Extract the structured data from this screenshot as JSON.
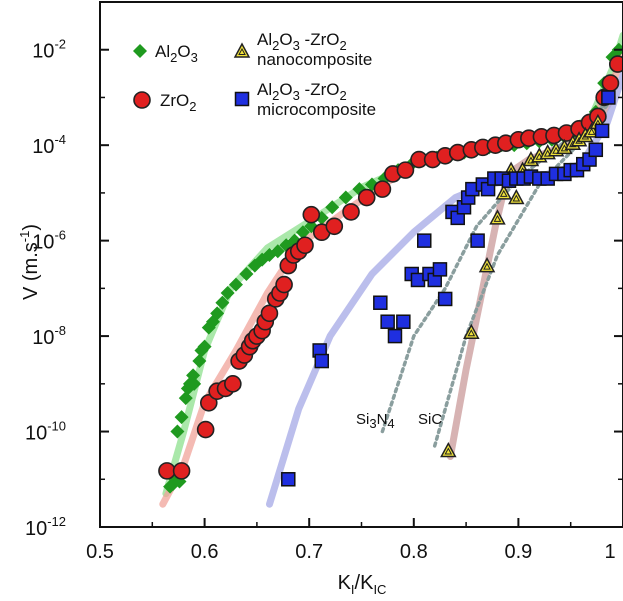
{
  "chart_data": {
    "type": "scatter",
    "title": "",
    "x_axis": {
      "label_main": "K",
      "label_sub1": "I",
      "label_mid": "/K",
      "label_sub2": "IC",
      "range": [
        0.5,
        1.0
      ],
      "ticks": [
        0.5,
        0.6,
        0.7,
        0.8,
        0.9,
        1.0
      ],
      "tick_labels": [
        "0.5",
        "0.6",
        "0.7",
        "0.8",
        "0.9",
        "1"
      ]
    },
    "y_axis": {
      "label_main": "V (m.s",
      "label_sup": "-1",
      "label_end": ")",
      "scale": "log",
      "range": [
        1e-12,
        0.1
      ],
      "ticks": [
        {
          "value": 1e-12,
          "base": "10",
          "exp": "-12"
        },
        {
          "value": 1e-10,
          "base": "10",
          "exp": "-10"
        },
        {
          "value": 1e-08,
          "base": "10",
          "exp": "-8"
        },
        {
          "value": 1e-06,
          "base": "10",
          "exp": "-6"
        },
        {
          "value": 0.0001,
          "base": "10",
          "exp": "-4"
        },
        {
          "value": 0.01,
          "base": "10",
          "exp": "-2"
        }
      ]
    },
    "grid": false,
    "legend_position": "top-left",
    "series": [
      {
        "name_parts": [
          "Al",
          "2",
          "O",
          "3"
        ],
        "label_lines": [],
        "marker": "diamond",
        "color": "#1f9a1f",
        "stroke": "#1f9a1f",
        "fit_color": "#8de08d",
        "points": [
          [
            0.567,
            7e-12
          ],
          [
            0.57,
            8e-12
          ],
          [
            0.572,
            1e-11
          ],
          [
            0.576,
            9e-12
          ],
          [
            0.574,
            1e-10
          ],
          [
            0.578,
            2e-10
          ],
          [
            0.582,
            5e-10
          ],
          [
            0.584,
            8e-10
          ],
          [
            0.586,
            1e-09
          ],
          [
            0.589,
            1.5e-09
          ],
          [
            0.59,
            1e-09
          ],
          [
            0.595,
            3e-09
          ],
          [
            0.597,
            5e-09
          ],
          [
            0.6,
            6e-09
          ],
          [
            0.604,
            1.5e-08
          ],
          [
            0.608,
            2e-08
          ],
          [
            0.612,
            3e-08
          ],
          [
            0.617,
            5e-08
          ],
          [
            0.622,
            8e-08
          ],
          [
            0.63,
            1.2e-07
          ],
          [
            0.64,
            2e-07
          ],
          [
            0.648,
            3e-07
          ],
          [
            0.655,
            4e-07
          ],
          [
            0.662,
            5e-07
          ],
          [
            0.67,
            6e-07
          ],
          [
            0.678,
            8e-07
          ],
          [
            0.686,
            1e-06
          ],
          [
            0.694,
            1.5e-06
          ],
          [
            0.702,
            2e-06
          ],
          [
            0.712,
            3e-06
          ],
          [
            0.722,
            5e-06
          ],
          [
            0.735,
            8e-06
          ],
          [
            0.748,
            1.2e-05
          ],
          [
            0.76,
            1.5e-05
          ],
          [
            0.772,
            2e-05
          ],
          [
            0.785,
            3e-05
          ],
          [
            0.798,
            4e-05
          ],
          [
            0.81,
            5e-05
          ],
          [
            0.822,
            5.5e-05
          ],
          [
            0.835,
            6e-05
          ],
          [
            0.848,
            7e-05
          ],
          [
            0.86,
            8e-05
          ],
          [
            0.872,
            9e-05
          ],
          [
            0.884,
            0.0001
          ],
          [
            0.896,
            0.0001
          ],
          [
            0.908,
            0.00011
          ],
          [
            0.92,
            0.00012
          ],
          [
            0.932,
            0.00013
          ],
          [
            0.944,
            0.00015
          ],
          [
            0.956,
            0.00018
          ],
          [
            0.966,
            0.00025
          ],
          [
            0.974,
            0.0005
          ],
          [
            0.982,
            0.002
          ],
          [
            0.99,
            0.007
          ],
          [
            0.996,
            0.01
          ]
        ]
      },
      {
        "name_parts": [
          "ZrO",
          "2"
        ],
        "label_lines": [],
        "marker": "circle",
        "color": "#e02020",
        "stroke": "#222222",
        "fit_color": "#f0a39a",
        "points": [
          [
            0.564,
            1.5e-11
          ],
          [
            0.578,
            1.5e-11
          ],
          [
            0.601,
            1.1e-10
          ],
          [
            0.604,
            4e-10
          ],
          [
            0.612,
            7e-10
          ],
          [
            0.62,
            8e-10
          ],
          [
            0.627,
            1e-09
          ],
          [
            0.633,
            3e-09
          ],
          [
            0.638,
            4e-09
          ],
          [
            0.643,
            6e-09
          ],
          [
            0.646,
            8e-09
          ],
          [
            0.65,
            1e-08
          ],
          [
            0.655,
            1.3e-08
          ],
          [
            0.658,
            2e-08
          ],
          [
            0.662,
            3e-08
          ],
          [
            0.668,
            6e-08
          ],
          [
            0.672,
            8e-08
          ],
          [
            0.676,
            1.2e-07
          ],
          [
            0.68,
            3e-07
          ],
          [
            0.685,
            5e-07
          ],
          [
            0.69,
            6e-07
          ],
          [
            0.696,
            8e-07
          ],
          [
            0.702,
            3.5e-06
          ],
          [
            0.712,
            1.5e-06
          ],
          [
            0.724,
            2e-06
          ],
          [
            0.74,
            4e-06
          ],
          [
            0.755,
            8e-06
          ],
          [
            0.77,
            1.2e-05
          ],
          [
            0.78,
            2.5e-05
          ],
          [
            0.792,
            3e-05
          ],
          [
            0.805,
            5e-05
          ],
          [
            0.818,
            5e-05
          ],
          [
            0.83,
            6e-05
          ],
          [
            0.842,
            7e-05
          ],
          [
            0.855,
            8e-05
          ],
          [
            0.866,
            9e-05
          ],
          [
            0.878,
            0.0001
          ],
          [
            0.888,
            0.00011
          ],
          [
            0.9,
            0.00013
          ],
          [
            0.91,
            0.00014
          ],
          [
            0.922,
            0.00015
          ],
          [
            0.934,
            0.00016
          ],
          [
            0.946,
            0.00018
          ],
          [
            0.958,
            0.00022
          ],
          [
            0.968,
            0.0003
          ],
          [
            0.976,
            0.0004
          ],
          [
            0.982,
            0.001
          ],
          [
            0.988,
            0.002
          ],
          [
            0.995,
            0.005
          ]
        ]
      },
      {
        "name_parts": [
          "Al",
          "2",
          "O",
          "3",
          " -ZrO",
          "2"
        ],
        "label_lines": [
          "nanocomposite"
        ],
        "marker": "triangle",
        "color": "#f1e33a",
        "stroke": "#222222",
        "fit_color": "#c99a9a",
        "points": [
          [
            0.833,
            4e-11
          ],
          [
            0.855,
            1.2e-08
          ],
          [
            0.87,
            3e-07
          ],
          [
            0.88,
            3e-06
          ],
          [
            0.886,
            1e-05
          ],
          [
            0.893,
            3e-05
          ],
          [
            0.898,
            8e-06
          ],
          [
            0.904,
            3e-05
          ],
          [
            0.912,
            5e-05
          ],
          [
            0.92,
            6e-05
          ],
          [
            0.928,
            7e-05
          ],
          [
            0.936,
            8e-05
          ],
          [
            0.944,
            9e-05
          ],
          [
            0.952,
            0.00011
          ],
          [
            0.958,
            0.00013
          ],
          [
            0.964,
            0.00016
          ],
          [
            0.97,
            0.0002
          ],
          [
            0.976,
            0.0003
          ]
        ]
      },
      {
        "name_parts": [
          "Al",
          "2",
          "O",
          "3",
          " -ZrO",
          "2"
        ],
        "label_lines": [
          "microcomposite"
        ],
        "marker": "square",
        "color": "#1f2fe0",
        "stroke": "#111111",
        "fit_color": "#a4a8e6",
        "points": [
          [
            0.68,
            1e-11
          ],
          [
            0.71,
            5e-09
          ],
          [
            0.712,
            3e-09
          ],
          [
            0.768,
            5e-08
          ],
          [
            0.775,
            2e-08
          ],
          [
            0.782,
            1e-08
          ],
          [
            0.79,
            2e-08
          ],
          [
            0.798,
            2e-07
          ],
          [
            0.804,
            1.5e-07
          ],
          [
            0.81,
            1e-06
          ],
          [
            0.815,
            2e-07
          ],
          [
            0.82,
            1.5e-07
          ],
          [
            0.825,
            2.5e-07
          ],
          [
            0.83,
            6e-08
          ],
          [
            0.837,
            4e-06
          ],
          [
            0.842,
            3e-06
          ],
          [
            0.848,
            5e-06
          ],
          [
            0.852,
            8e-06
          ],
          [
            0.856,
            1.2e-05
          ],
          [
            0.861,
            1e-06
          ],
          [
            0.866,
            1.5e-05
          ],
          [
            0.871,
            1.2e-05
          ],
          [
            0.877,
            2e-05
          ],
          [
            0.884,
            2e-05
          ],
          [
            0.891,
            1.8e-05
          ],
          [
            0.898,
            2e-05
          ],
          [
            0.905,
            2e-05
          ],
          [
            0.912,
            2.2e-05
          ],
          [
            0.92,
            2e-05
          ],
          [
            0.928,
            2e-05
          ],
          [
            0.936,
            2.5e-05
          ],
          [
            0.944,
            2.5e-05
          ],
          [
            0.95,
            3e-05
          ],
          [
            0.956,
            3e-05
          ],
          [
            0.962,
            4e-05
          ],
          [
            0.968,
            5e-05
          ],
          [
            0.974,
            8e-05
          ],
          [
            0.98,
            0.0002
          ],
          [
            0.986,
            0.001
          ]
        ]
      }
    ],
    "reference_curves": [
      {
        "label_parts": [
          "Si",
          "3",
          "N",
          "4"
        ],
        "style": "dotted",
        "color": "#8a9e9e",
        "points": [
          [
            0.77,
            1e-10
          ],
          [
            0.8,
            1e-08
          ],
          [
            0.83,
            1e-07
          ],
          [
            0.86,
            2e-06
          ],
          [
            0.9,
            2e-05
          ],
          [
            0.95,
            0.00015
          ],
          [
            0.985,
            0.0008
          ]
        ]
      },
      {
        "label_parts": [
          "SiC"
        ],
        "style": "dotted",
        "color": "#8a9e9e",
        "points": [
          [
            0.82,
            5e-11
          ],
          [
            0.85,
            1e-08
          ],
          [
            0.88,
            5e-07
          ],
          [
            0.92,
            1.5e-05
          ],
          [
            0.96,
            0.00012
          ],
          [
            0.99,
            0.001
          ]
        ]
      }
    ],
    "fit_curves": [
      {
        "series": 0,
        "points": [
          [
            0.563,
            5e-12
          ],
          [
            0.58,
            1e-10
          ],
          [
            0.6,
            5e-09
          ],
          [
            0.625,
            1e-07
          ],
          [
            0.66,
            7e-07
          ],
          [
            0.7,
            2.5e-06
          ],
          [
            0.75,
            1.3e-05
          ],
          [
            0.8,
            4e-05
          ],
          [
            0.85,
            7e-05
          ],
          [
            0.9,
            0.00011
          ],
          [
            0.94,
            0.00016
          ],
          [
            0.97,
            0.0004
          ],
          [
            0.99,
            0.004
          ],
          [
            1.0,
            0.02
          ]
        ]
      },
      {
        "series": 1,
        "points": [
          [
            0.56,
            3e-12
          ],
          [
            0.58,
            2e-11
          ],
          [
            0.6,
            4e-10
          ],
          [
            0.63,
            5e-09
          ],
          [
            0.66,
            8e-08
          ],
          [
            0.69,
            8e-07
          ],
          [
            0.74,
            5e-06
          ],
          [
            0.8,
            4e-05
          ],
          [
            0.86,
            8e-05
          ],
          [
            0.92,
            0.00014
          ],
          [
            0.96,
            0.00022
          ],
          [
            0.985,
            0.001
          ],
          [
            1.0,
            0.008
          ]
        ]
      },
      {
        "series": 2,
        "points": [
          [
            0.835,
            3e-11
          ],
          [
            0.85,
            2e-09
          ],
          [
            0.865,
            8e-08
          ],
          [
            0.878,
            2e-06
          ],
          [
            0.89,
            2.5e-05
          ],
          [
            0.91,
            5e-05
          ],
          [
            0.94,
            9e-05
          ],
          [
            0.97,
            0.0002
          ],
          [
            0.99,
            0.001
          ]
        ]
      },
      {
        "series": 3,
        "points": [
          [
            0.662,
            3e-12
          ],
          [
            0.69,
            3e-10
          ],
          [
            0.72,
            1e-08
          ],
          [
            0.76,
            2e-07
          ],
          [
            0.8,
            1.5e-06
          ],
          [
            0.84,
            8e-06
          ],
          [
            0.87,
            1.5e-05
          ],
          [
            0.92,
            2.2e-05
          ],
          [
            0.96,
            4e-05
          ],
          [
            0.985,
            0.0003
          ],
          [
            1.0,
            0.003
          ]
        ]
      }
    ]
  }
}
